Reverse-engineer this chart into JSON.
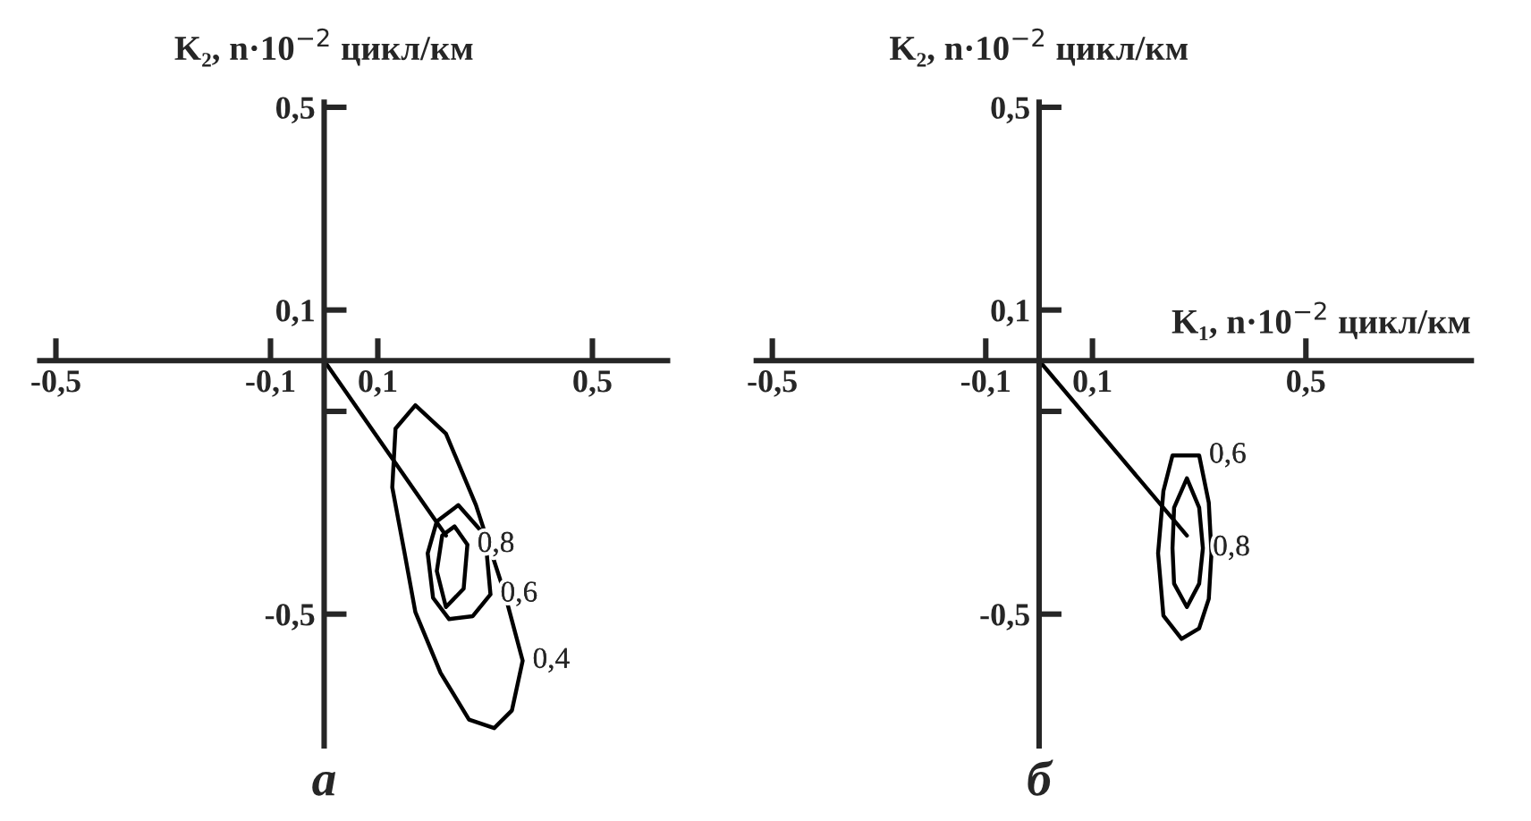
{
  "chart_data": [
    {
      "type": "line",
      "title": "а",
      "ylabel": "K₂, n·10$^{−2}$ цикл/км",
      "xlim": [
        -0.53,
        0.64
      ],
      "ylim": [
        -0.76,
        0.51
      ],
      "xticks": [
        {
          "value": -0.5,
          "label": "-0,5"
        },
        {
          "value": -0.1,
          "label": "-0,1"
        },
        {
          "value": 0.1,
          "label": "0,1"
        },
        {
          "value": 0.5,
          "label": "0,5"
        }
      ],
      "yticks": [
        {
          "value": -0.5,
          "label": "-0,5"
        },
        {
          "value": -0.1,
          "label": null
        },
        {
          "value": 0.1,
          "label": "0,1"
        },
        {
          "value": 0.5,
          "label": "0,5"
        }
      ],
      "grid": false,
      "series": [
        {
          "color": "#000000",
          "x": [
            0.127,
            0.133,
            0.17,
            0.227,
            0.283,
            0.337,
            0.37,
            null,
            0.127,
            0.15,
            0.17,
            0.217,
            0.27,
            0.317,
            0.35,
            0.37
          ],
          "values": [
            -0.25,
            -0.134,
            -0.088,
            -0.144,
            -0.285,
            -0.461,
            -0.592,
            null,
            -0.25,
            -0.38,
            -0.496,
            -0.616,
            -0.708,
            -0.725,
            -0.69,
            -0.592
          ]
        },
        {
          "color": "#000000",
          "x": [
            0.193,
            0.21,
            0.25,
            0.3,
            0.31,
            null,
            0.193,
            0.203,
            0.233,
            0.277,
            0.31
          ],
          "values": [
            -0.38,
            -0.317,
            -0.285,
            -0.345,
            -0.461,
            null,
            -0.38,
            -0.468,
            -0.51,
            -0.504,
            -0.461
          ]
        },
        {
          "color": "#000000",
          "x": [
            0.21,
            0.22,
            0.243,
            0.267,
            null,
            0.21,
            0.227,
            0.26,
            0.267
          ],
          "values": [
            -0.415,
            -0.345,
            -0.327,
            -0.363,
            null,
            -0.415,
            -0.486,
            -0.45,
            -0.363
          ]
        },
        {
          "color": "#000000",
          "x": [
            0,
            0.227
          ],
          "values": [
            0,
            -0.345
          ]
        }
      ],
      "annotations": [
        {
          "text": "0,4",
          "x": 0.37,
          "y": -0.592
        },
        {
          "text": "0,6",
          "x": 0.31,
          "y": -0.461
        },
        {
          "text": "0,8",
          "x": 0.267,
          "y": -0.363
        }
      ]
    },
    {
      "type": "line",
      "title": "б",
      "ylabel": "K₂, n·10$^{−2}$ цикл/км",
      "xlabel": "K₁, n·10$^{−2}$ цикл/км",
      "xlim": [
        -0.53,
        0.81
      ],
      "ylim": [
        -0.76,
        0.51
      ],
      "xticks": [
        {
          "value": -0.5,
          "label": "-0,5"
        },
        {
          "value": -0.1,
          "label": "-0,1"
        },
        {
          "value": 0.1,
          "label": "0,1"
        },
        {
          "value": 0.5,
          "label": "0,5"
        }
      ],
      "yticks": [
        {
          "value": -0.5,
          "label": "-0,5"
        },
        {
          "value": -0.1,
          "label": null
        },
        {
          "value": 0.1,
          "label": "0,1"
        },
        {
          "value": 0.5,
          "label": "0,5"
        }
      ],
      "grid": false,
      "series": [
        {
          "color": "#000000",
          "x": [
            0.223,
            0.233,
            0.25,
            0.3,
            0.318,
            0.323,
            null,
            0.223,
            0.233,
            0.267,
            0.3,
            0.318,
            0.323
          ],
          "values": [
            -0.38,
            -0.257,
            -0.187,
            -0.187,
            -0.28,
            -0.38,
            null,
            -0.38,
            -0.503,
            -0.549,
            -0.528,
            -0.47,
            -0.38
          ]
        },
        {
          "color": "#000000",
          "x": [
            0.25,
            0.253,
            0.277,
            0.3,
            0.307,
            null,
            0.25,
            0.253,
            0.277,
            0.3,
            0.307
          ],
          "values": [
            -0.37,
            -0.29,
            -0.232,
            -0.29,
            -0.37,
            null,
            -0.37,
            -0.44,
            -0.486,
            -0.44,
            -0.37
          ]
        },
        {
          "color": "#000000",
          "x": [
            0,
            0.277
          ],
          "values": [
            0,
            -0.345
          ]
        }
      ],
      "annotations": [
        {
          "text": "0,6",
          "x": 0.3,
          "y": -0.187
        },
        {
          "text": "0,8",
          "x": 0.307,
          "y": -0.37
        }
      ]
    }
  ]
}
